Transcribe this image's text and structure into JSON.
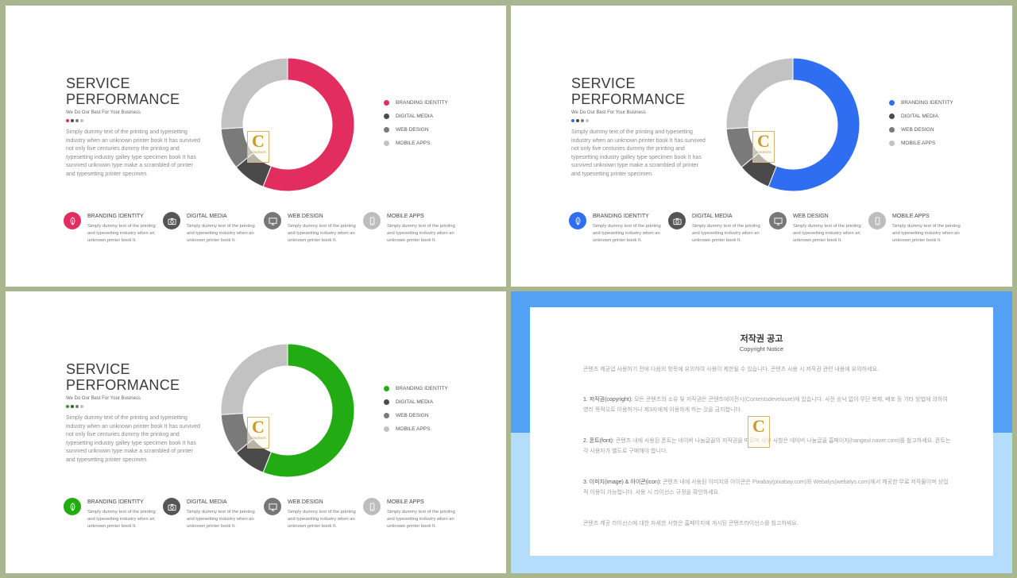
{
  "slides": [
    {
      "title_line1": "SERVICE",
      "title_line2": "PERFORMANCE",
      "subtitle": "We Do Our Best For Your Business",
      "description": "Simply dummy text of the printing and typesetting industry when an unknown printer book It has survived not only five centuries dummy the printing and typesetting industry galley type specimen book It has survived unknown type make a scrambled of printer and typesetting printer specimen.",
      "accent_color": "#e22d5f",
      "legend": [
        "BRANDING IDENTITY",
        "DIGITAL MEDIA",
        "WEB DESIGN",
        "MOBILE APPS"
      ]
    },
    {
      "title_line1": "SERVICE",
      "title_line2": "PERFORMANCE",
      "subtitle": "We Do Our Best For Your Business",
      "description": "Simply dummy text of the printing and typesetting industry when an unknown printer book It has survived not only five centuries dummy the printing and typesetting industry galley type specimen book It has survived unknown type make a scrambled of printer and typesetting printer specimen.",
      "accent_color": "#2f6ef0",
      "legend": [
        "BRANDING IDENTITY",
        "DIGITAL MEDIA",
        "WEB DESIGN",
        "MOBILE APPS"
      ]
    },
    {
      "title_line1": "SERVICE",
      "title_line2": "PERFORMANCE",
      "subtitle": "We Do Our Best For Your Business",
      "description": "Simply dummy text of the printing and typesetting industry when an unknown printer book It has survived not only five centuries dummy the printing and typesetting industry galley type specimen book It has survived unknown type make a scrambled of printer and typesetting printer specimen.",
      "accent_color": "#22ab12",
      "legend": [
        "BRANDING IDENTITY",
        "DIGITAL MEDIA",
        "WEB DESIGN",
        "MOBILE APPS"
      ]
    }
  ],
  "features": [
    {
      "title": "BRANDING IDENTITY",
      "text": "Simply dummy text of the printing and typesetting industry when an unknown printer book It.",
      "icon": "leaf-icon"
    },
    {
      "title": "DIGITAL MEDIA",
      "text": "Simply dummy text of the printing and typesetting industry when an unknown printer book It.",
      "icon": "camera-icon"
    },
    {
      "title": "WEB DESIGN",
      "text": "Simply dummy text of the printing and typesetting industry when an unknown printer book It.",
      "icon": "monitor-icon"
    },
    {
      "title": "MOBILE APPS",
      "text": "Simply dummy text of the printing and typesetting industry when an unknown printer book It.",
      "icon": "phone-icon"
    }
  ],
  "chart_data": {
    "type": "pie",
    "categories": [
      "BRANDING IDENTITY",
      "DIGITAL MEDIA",
      "WEB DESIGN",
      "MOBILE APPS"
    ],
    "values": [
      56,
      8,
      10,
      26
    ],
    "colors": [
      "accent",
      "#4a4a4a",
      "#7a7a7a",
      "#c2c2c2"
    ],
    "legend": "right"
  },
  "stamp": {
    "letter": "C",
    "text": "CONTENTS"
  },
  "notice": {
    "title": "저작권 공고",
    "subtitle": "Copyright Notice",
    "intro": "콘텐츠 제공업 사용하기 전에 다음의 항목에 유의하여 사용이 제한될 수 있습니다. 콘텐츠 사용 시 저작권 관련 내용에 유의하세요.",
    "p1_head": "1. 저작권(copyright):",
    "p1_text": " 모든 콘텐츠의 소유 및 저작권은 콘텐츠에이전시(Contentsdeveloure)에 있습니다. 사전 승낙 없이 무단 복제, 배포 등 기타 방법에 의하여 영리 목적으로 이용하거나 제3자에게 이용하게 하는 것을 금지합니다.",
    "p2_head": "2. 폰트(font):",
    "p2_text": " 콘텐츠 내에 사용된 폰트는 네이버 나눔글꼴의 저작권을 따르며 세부 사항은 네이버 나눔글꼴 홈페이지(hangeul.naver.com)를 참고하세요. 폰트는 각 사용자가 별도로 구매해야 합니다.",
    "p3_head": "3. 이미지(image) & 아이콘(icon):",
    "p3_text": " 콘텐츠 내에 사용된 이미지와 아이콘은 Pixabay(pixabay.com)와 Webalys(webalys.com)에서 제공한 무료 저작물이며 상업적 이용이 가능합니다. 사용 시 라이선스 규정을 확인하세요.",
    "footer": "콘텐츠 제공 라이선스에 대한 자세한 사항은 홈페이지에 게시된 콘텐츠라이선스를 참고하세요."
  }
}
